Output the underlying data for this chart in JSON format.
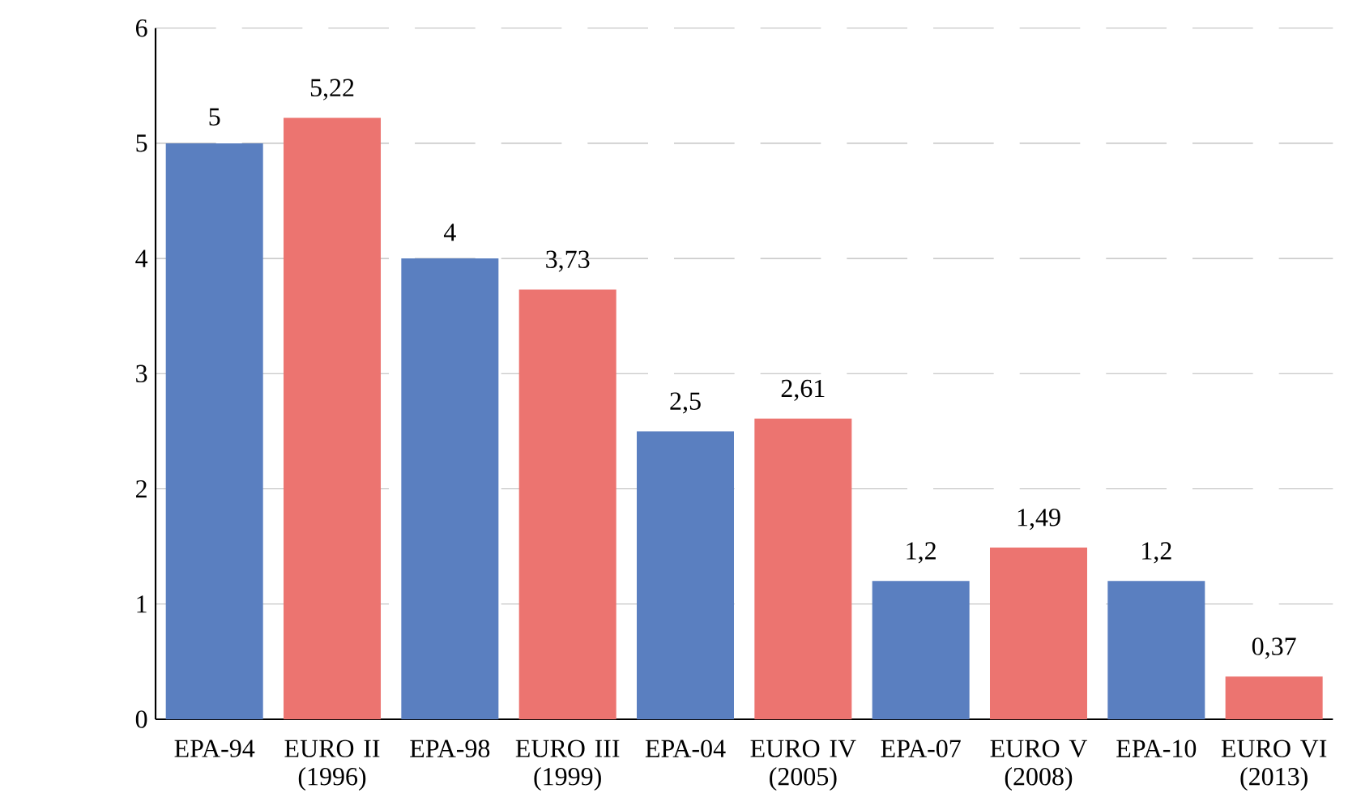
{
  "chart_data": {
    "type": "bar",
    "categories": [
      "EPA-94",
      "EURO II (1996)",
      "EPA-98",
      "EURO III (1999)",
      "EPA-04",
      "EURO IV (2005)",
      "EPA-07",
      "EURO V (2008)",
      "EPA-10",
      "EURO VI (2013)"
    ],
    "values": [
      5,
      5.22,
      4,
      3.73,
      2.5,
      2.61,
      1.2,
      1.49,
      1.2,
      0.37
    ],
    "value_labels": [
      "5",
      "5,22",
      "4",
      "3,73",
      "2,5",
      "2,61",
      "1,2",
      "1,49",
      "1,2",
      "0,37"
    ],
    "colors": [
      "#5a7fc0",
      "#ec7470",
      "#5a7fc0",
      "#ec7470",
      "#5a7fc0",
      "#ec7470",
      "#5a7fc0",
      "#ec7470",
      "#5a7fc0",
      "#ec7470"
    ],
    "ylim": [
      0,
      6
    ],
    "yticks": [
      0,
      1,
      2,
      3,
      4,
      5,
      6
    ],
    "grid": "y"
  }
}
